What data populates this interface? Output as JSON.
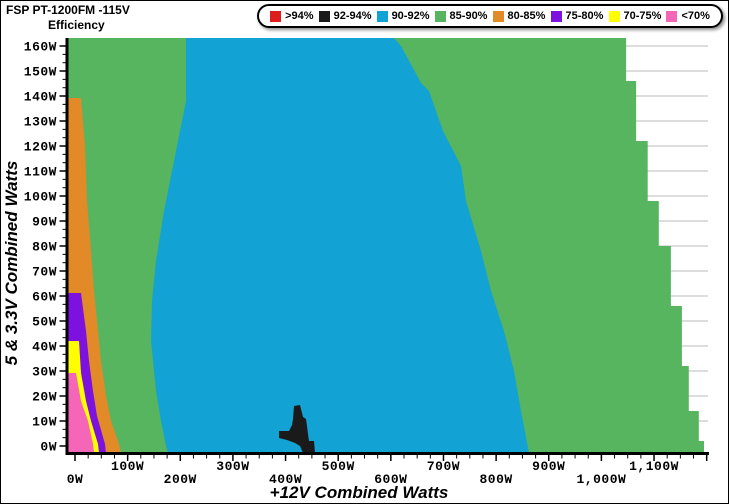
{
  "header": {
    "title": "FSP PT-1200FM -115V",
    "subtitle": "Efficiency"
  },
  "legend": {
    "items": [
      {
        "label": ">94%",
        "color": "#DC1E1E"
      },
      {
        "label": "92-94%",
        "color": "#1A1A1A"
      },
      {
        "label": "90-92%",
        "color": "#12A2D3"
      },
      {
        "label": "85-90%",
        "color": "#57B55F"
      },
      {
        "label": "80-85%",
        "color": "#E18A27"
      },
      {
        "label": "75-80%",
        "color": "#7D12DE"
      },
      {
        "label": "70-75%",
        "color": "#FDFF00"
      },
      {
        "label": "<70%",
        "color": "#F666B8"
      }
    ]
  },
  "chart_data": {
    "type": "heatmap",
    "title": "FSP PT-1200FM -115V Efficiency",
    "xlabel": "+12V Combined Watts",
    "ylabel": "5 & 3.3V Combined Watts",
    "xlim": [
      -13,
      1203
    ],
    "ylim": [
      -2.8,
      163.2
    ],
    "grid": {
      "orientation": "horizontal",
      "step_watts": 10,
      "color": "#BBBBBB"
    },
    "legend_position": "top",
    "x_minor_tick_step": 25,
    "x_major_tick_step": 100,
    "y_minor_tick_step": 3.333,
    "y_major_tick_step": 10,
    "x_ticks": [
      {
        "value": 0,
        "label": "0W"
      },
      {
        "value": 100,
        "label": "100W"
      },
      {
        "value": 200,
        "label": "200W"
      },
      {
        "value": 300,
        "label": "300W"
      },
      {
        "value": 400,
        "label": "400W"
      },
      {
        "value": 500,
        "label": "500W"
      },
      {
        "value": 600,
        "label": "600W"
      },
      {
        "value": 700,
        "label": "700W"
      },
      {
        "value": 800,
        "label": "800W"
      },
      {
        "value": 900,
        "label": "900W"
      },
      {
        "value": 1000,
        "label": "1,000W"
      },
      {
        "value": 1100,
        "label": "1,100W"
      }
    ],
    "y_ticks": [
      {
        "value": 0,
        "label": "0W"
      },
      {
        "value": 10,
        "label": "10W"
      },
      {
        "value": 20,
        "label": "20W"
      },
      {
        "value": 30,
        "label": "30W"
      },
      {
        "value": 40,
        "label": "40W"
      },
      {
        "value": 50,
        "label": "50W"
      },
      {
        "value": 60,
        "label": "60W"
      },
      {
        "value": 70,
        "label": "70W"
      },
      {
        "value": 80,
        "label": "80W"
      },
      {
        "value": 90,
        "label": "90W"
      },
      {
        "value": 100,
        "label": "100W"
      },
      {
        "value": 110,
        "label": "110W"
      },
      {
        "value": 120,
        "label": "120W"
      },
      {
        "value": 130,
        "label": "130W"
      },
      {
        "value": 140,
        "label": "140W"
      },
      {
        "value": 150,
        "label": "150W"
      },
      {
        "value": 160,
        "label": "160W"
      }
    ],
    "regions": [
      {
        "band": "85-90%",
        "color": "#57B55F",
        "points": [
          [
            -13,
            163.2
          ],
          [
            1047,
            163.2
          ],
          [
            1047,
            146
          ],
          [
            1066,
            146
          ],
          [
            1066,
            122
          ],
          [
            1088,
            122
          ],
          [
            1088,
            98
          ],
          [
            1109,
            98
          ],
          [
            1109,
            80
          ],
          [
            1132,
            80
          ],
          [
            1132,
            56
          ],
          [
            1153,
            56
          ],
          [
            1153,
            32
          ],
          [
            1166,
            32
          ],
          [
            1166,
            14
          ],
          [
            1185,
            14
          ],
          [
            1185,
            2
          ],
          [
            1195,
            2
          ],
          [
            1195,
            -2.8
          ],
          [
            -13,
            -2.8
          ]
        ]
      },
      {
        "band": "80-85%",
        "color": "#E18A27",
        "points": [
          [
            -13,
            139.2
          ],
          [
            11.4,
            139.2
          ],
          [
            19,
            120
          ],
          [
            22.8,
            98
          ],
          [
            30.4,
            78
          ],
          [
            36.1,
            62
          ],
          [
            43.7,
            46
          ],
          [
            49.4,
            34
          ],
          [
            58.9,
            20
          ],
          [
            68.4,
            10
          ],
          [
            83.6,
            0.8
          ],
          [
            87.4,
            -2.8
          ],
          [
            -13,
            -2.8
          ]
        ]
      },
      {
        "band": "75-80%",
        "color": "#7D12DE",
        "points": [
          [
            -13,
            61.2
          ],
          [
            11.4,
            61.2
          ],
          [
            20.9,
            46
          ],
          [
            26.6,
            34
          ],
          [
            34.2,
            22
          ],
          [
            41.8,
            12
          ],
          [
            57,
            0.8
          ],
          [
            58.9,
            -2.8
          ],
          [
            -13,
            -2.8
          ]
        ]
      },
      {
        "band": "70-75%",
        "color": "#FDFF00",
        "points": [
          [
            -13,
            42
          ],
          [
            7.6,
            42
          ],
          [
            11.4,
            29.2
          ],
          [
            20.9,
            18
          ],
          [
            30.4,
            10
          ],
          [
            43.7,
            0.8
          ],
          [
            45.6,
            -2.8
          ],
          [
            -13,
            -2.8
          ]
        ]
      },
      {
        "band": "<70%",
        "color": "#F666B8",
        "points": [
          [
            -13,
            29.2
          ],
          [
            1.9,
            29.2
          ],
          [
            11.4,
            18
          ],
          [
            24.7,
            10
          ],
          [
            34.2,
            0.8
          ],
          [
            36.1,
            -2.8
          ],
          [
            -13,
            -2.8
          ]
        ]
      },
      {
        "band": "90-92%",
        "color": "#12A2D3",
        "points": [
          [
            210.9,
            163.2
          ],
          [
            210.9,
            138
          ],
          [
            191.9,
            118
          ],
          [
            169.1,
            94
          ],
          [
            153.9,
            74
          ],
          [
            146.3,
            58
          ],
          [
            144.4,
            42
          ],
          [
            153.9,
            22
          ],
          [
            163.4,
            10
          ],
          [
            172.9,
            0
          ],
          [
            176.7,
            -2.8
          ],
          [
            862.5,
            -2.8
          ],
          [
            847.3,
            14
          ],
          [
            834,
            30
          ],
          [
            815,
            46
          ],
          [
            790.3,
            62
          ],
          [
            771.3,
            78
          ],
          [
            742.8,
            98
          ],
          [
            733.3,
            112
          ],
          [
            699.1,
            126
          ],
          [
            672.5,
            142
          ],
          [
            657.3,
            145.2
          ],
          [
            619.3,
            160
          ],
          [
            606,
            163.2
          ]
        ]
      },
      {
        "band": "92-94%",
        "color": "#1A1A1A",
        "points": [
          [
            387.5,
            3.2
          ],
          [
            387.5,
            6
          ],
          [
            406.5,
            6
          ],
          [
            412.2,
            8.4
          ],
          [
            414.1,
            10.8
          ],
          [
            416,
            16
          ],
          [
            427.4,
            16.4
          ],
          [
            431.2,
            13.2
          ],
          [
            433.1,
            11.6
          ],
          [
            438.8,
            10.8
          ],
          [
            440.7,
            8
          ],
          [
            442.6,
            4.8
          ],
          [
            444.5,
            2
          ],
          [
            454,
            2
          ],
          [
            455.9,
            -2.8
          ],
          [
            433.1,
            -2.8
          ],
          [
            427.4,
            0
          ],
          [
            417.9,
            1.2
          ],
          [
            402.7,
            2.4
          ]
        ]
      }
    ]
  }
}
